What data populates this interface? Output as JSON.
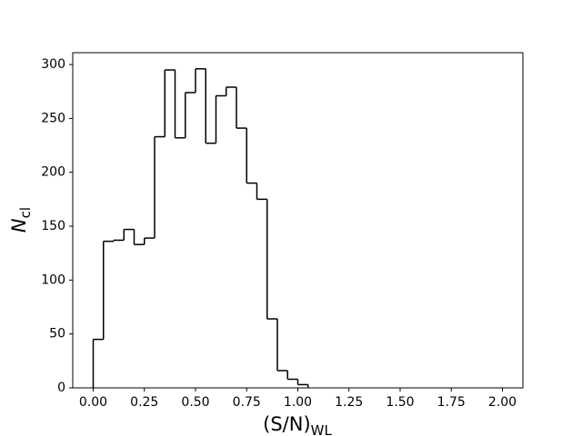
{
  "chart_data": {
    "type": "histogram",
    "xlabel": [
      "(S/N)",
      "WL"
    ],
    "ylabel": [
      "N",
      "cl"
    ],
    "bins": [
      0.0,
      0.05,
      0.1,
      0.15,
      0.2,
      0.25,
      0.3,
      0.35,
      0.4,
      0.45,
      0.5,
      0.55,
      0.6,
      0.65,
      0.7,
      0.75,
      0.8,
      0.85,
      0.9,
      0.95,
      1.0,
      1.05
    ],
    "values": [
      45,
      136,
      137,
      147,
      133,
      139,
      233,
      295,
      232,
      274,
      296,
      227,
      271,
      279,
      241,
      190,
      175,
      64,
      16,
      8,
      3
    ],
    "color": "#000000",
    "xlim": [
      -0.1,
      2.1
    ],
    "ylim": [
      0,
      311
    ],
    "xticks": [
      {
        "value": 0,
        "label": "0.00"
      },
      {
        "value": 0.25,
        "label": "0.25"
      },
      {
        "value": 0.5,
        "label": "0.50"
      },
      {
        "value": 0.75,
        "label": "0.75"
      },
      {
        "value": 1,
        "label": "1.00"
      },
      {
        "value": 1.25,
        "label": "1.25"
      },
      {
        "value": 1.5,
        "label": "1.50"
      },
      {
        "value": 1.75,
        "label": "1.75"
      },
      {
        "value": 2,
        "label": "2.00"
      }
    ],
    "yticks": [
      0,
      50,
      100,
      150,
      200,
      250,
      300
    ],
    "grid": false
  }
}
